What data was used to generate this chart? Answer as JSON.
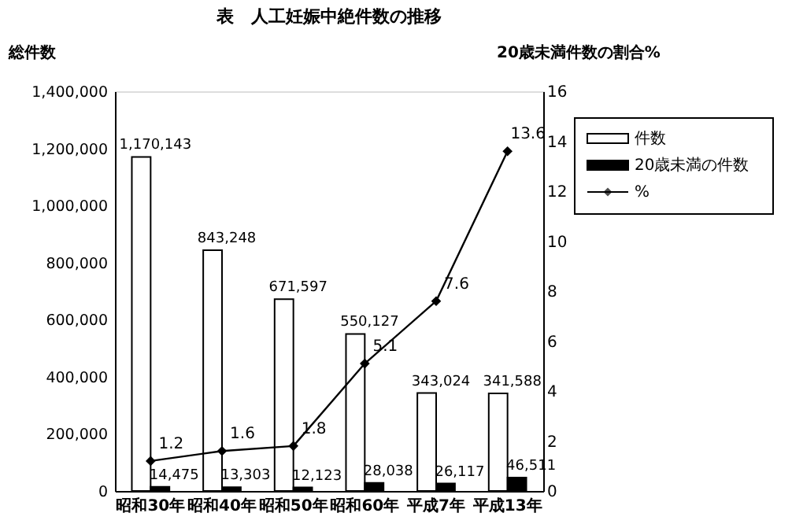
{
  "chart_data": {
    "type": "bar",
    "title": "表　人工妊娠中絶件数の推移",
    "ylabel": "総件数",
    "y2label": "20歳未満件数の割合%",
    "categories": [
      "昭和30年",
      "昭和40年",
      "昭和50年",
      "昭和60年",
      "平成7年",
      "平成13年"
    ],
    "series": [
      {
        "name": "件数",
        "color": "#ffffff",
        "values": [
          1170143,
          843248,
          671597,
          550127,
          343024,
          341588
        ],
        "value_labels": [
          "1,170,143",
          "843,248",
          "671,597",
          "550,127",
          "343,024",
          "341,588"
        ]
      },
      {
        "name": "20歳未満の件数",
        "color": "#000000",
        "values": [
          14475,
          13303,
          12123,
          28038,
          26117,
          46511
        ],
        "value_labels": [
          "14,475",
          "13,303",
          "12,123",
          "28,038",
          "26,117",
          "46,511"
        ]
      },
      {
        "name": "%",
        "type": "line",
        "axis": "y2",
        "color": "#000000",
        "marker": "diamond",
        "line_style": "solid",
        "values": [
          1.2,
          1.6,
          1.8,
          5.1,
          7.6,
          13.6
        ],
        "value_labels": [
          "1.2",
          "1.6",
          "1.8",
          "5.1",
          "7.6",
          "13.6"
        ]
      }
    ],
    "ylim": [
      0,
      1400000
    ],
    "yticks": [
      0,
      {
        "value": 200000,
        "label": "200,000"
      },
      {
        "value": 400000,
        "label": "400,000"
      },
      {
        "value": 600000,
        "label": "600,000"
      },
      {
        "value": 800000,
        "label": "800,000"
      },
      {
        "value": 1000000,
        "label": "1,000,000"
      },
      {
        "value": 1200000,
        "label": "1,200,000"
      },
      {
        "value": 1400000,
        "label": "1,400,000"
      }
    ],
    "y2lim": [
      0,
      16
    ],
    "y2ticks": [
      0,
      2,
      4,
      6,
      8,
      10,
      12,
      14,
      16
    ],
    "grid": false,
    "legend": "top right"
  }
}
